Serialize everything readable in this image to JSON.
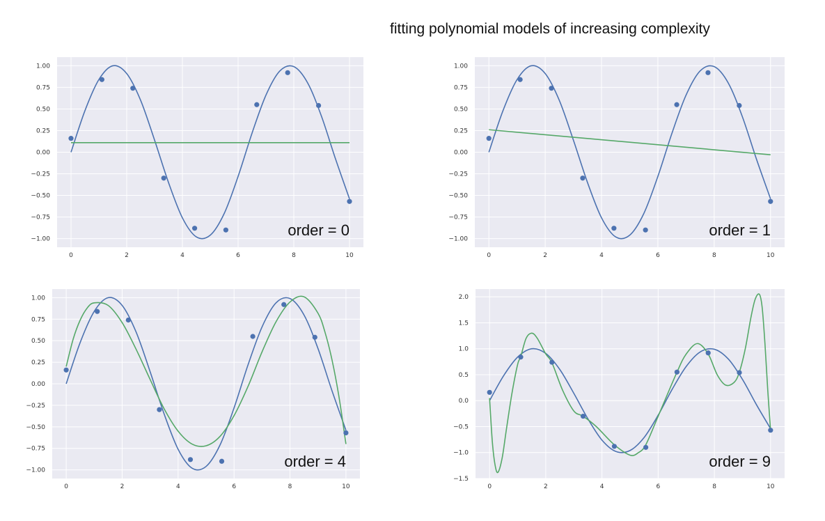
{
  "title": "fitting polynomial models of increasing complexity",
  "colors": {
    "background": "#EAEAF2",
    "grid": "#ffffff",
    "truth": "#4C72B0",
    "fit": "#55A868",
    "points": "#4C72B0"
  },
  "chart_data": [
    {
      "type": "line",
      "annotation": "order = 0",
      "xlim": [
        -0.5,
        10.5
      ],
      "ylim": [
        -1.1,
        1.1
      ],
      "xticks": [
        0,
        2,
        4,
        6,
        8,
        10
      ],
      "xtick_labels": [
        "0",
        "2",
        "4",
        "6",
        "8",
        "10"
      ],
      "yticks": [
        1,
        0.75,
        0.5,
        0.25,
        0,
        -0.25,
        -0.5,
        -0.75,
        -1
      ],
      "ytick_labels": [
        "1.00",
        "0.75",
        "0.50",
        "0.25",
        "0.00",
        "−0.25",
        "−0.50",
        "−0.75",
        "−1.00"
      ],
      "points": {
        "x": [
          0,
          1.11,
          2.22,
          3.33,
          4.44,
          5.56,
          6.67,
          7.78,
          8.89,
          10
        ],
        "y": [
          0.16,
          0.84,
          0.74,
          -0.3,
          -0.88,
          -0.9,
          0.55,
          0.92,
          0.54,
          -0.57
        ]
      },
      "truth": {
        "x": [
          0,
          0.5,
          1,
          1.5,
          2,
          2.5,
          3,
          3.5,
          4,
          4.5,
          5,
          5.5,
          6,
          6.5,
          7,
          7.5,
          8,
          8.5,
          9,
          9.5,
          10
        ],
        "y": [
          0,
          0.48,
          0.84,
          1.0,
          0.91,
          0.6,
          0.14,
          -0.35,
          -0.76,
          -0.98,
          -0.96,
          -0.71,
          -0.28,
          0.22,
          0.66,
          0.94,
          0.99,
          0.8,
          0.41,
          -0.08,
          -0.54
        ]
      },
      "fit": {
        "x": [
          0,
          10
        ],
        "y": [
          0.11,
          0.11
        ]
      }
    },
    {
      "type": "line",
      "annotation": "order = 1",
      "xlim": [
        -0.5,
        10.5
      ],
      "ylim": [
        -1.1,
        1.1
      ],
      "xticks": [
        0,
        2,
        4,
        6,
        8,
        10
      ],
      "xtick_labels": [
        "0",
        "2",
        "4",
        "6",
        "8",
        "10"
      ],
      "yticks": [
        1,
        0.75,
        0.5,
        0.25,
        0,
        -0.25,
        -0.5,
        -0.75,
        -1
      ],
      "ytick_labels": [
        "1.00",
        "0.75",
        "0.50",
        "0.25",
        "0.00",
        "−0.25",
        "−0.50",
        "−0.75",
        "−1.00"
      ],
      "points": {
        "x": [
          0,
          1.11,
          2.22,
          3.33,
          4.44,
          5.56,
          6.67,
          7.78,
          8.89,
          10
        ],
        "y": [
          0.16,
          0.84,
          0.74,
          -0.3,
          -0.88,
          -0.9,
          0.55,
          0.92,
          0.54,
          -0.57
        ]
      },
      "truth": {
        "x": [
          0,
          0.5,
          1,
          1.5,
          2,
          2.5,
          3,
          3.5,
          4,
          4.5,
          5,
          5.5,
          6,
          6.5,
          7,
          7.5,
          8,
          8.5,
          9,
          9.5,
          10
        ],
        "y": [
          0,
          0.48,
          0.84,
          1.0,
          0.91,
          0.6,
          0.14,
          -0.35,
          -0.76,
          -0.98,
          -0.96,
          -0.71,
          -0.28,
          0.22,
          0.66,
          0.94,
          0.99,
          0.8,
          0.41,
          -0.08,
          -0.54
        ]
      },
      "fit": {
        "x": [
          0,
          10
        ],
        "y": [
          0.26,
          -0.03
        ]
      }
    },
    {
      "type": "line",
      "annotation": "order = 4",
      "xlim": [
        -0.5,
        10.5
      ],
      "ylim": [
        -1.1,
        1.1
      ],
      "xticks": [
        0,
        2,
        4,
        6,
        8,
        10
      ],
      "xtick_labels": [
        "0",
        "2",
        "4",
        "6",
        "8",
        "10"
      ],
      "yticks": [
        1,
        0.75,
        0.5,
        0.25,
        0,
        -0.25,
        -0.5,
        -0.75,
        -1
      ],
      "ytick_labels": [
        "1.00",
        "0.75",
        "0.50",
        "0.25",
        "0.00",
        "−0.25",
        "−0.50",
        "−0.75",
        "−1.00"
      ],
      "points": {
        "x": [
          0,
          1.11,
          2.22,
          3.33,
          4.44,
          5.56,
          6.67,
          7.78,
          8.89,
          10
        ],
        "y": [
          0.16,
          0.84,
          0.74,
          -0.3,
          -0.88,
          -0.9,
          0.55,
          0.92,
          0.54,
          -0.57
        ]
      },
      "truth": {
        "x": [
          0,
          0.5,
          1,
          1.5,
          2,
          2.5,
          3,
          3.5,
          4,
          4.5,
          5,
          5.5,
          6,
          6.5,
          7,
          7.5,
          8,
          8.5,
          9,
          9.5,
          10
        ],
        "y": [
          0,
          0.48,
          0.84,
          1.0,
          0.91,
          0.6,
          0.14,
          -0.35,
          -0.76,
          -0.98,
          -0.96,
          -0.71,
          -0.28,
          0.22,
          0.66,
          0.94,
          0.99,
          0.8,
          0.41,
          -0.08,
          -0.54
        ]
      },
      "fit": {
        "x": [
          0,
          0.25,
          0.5,
          0.75,
          1,
          1.5,
          2,
          2.5,
          3,
          3.5,
          4,
          4.5,
          5,
          5.5,
          6,
          6.5,
          7,
          7.5,
          8,
          8.5,
          9,
          9.25,
          9.5,
          9.75,
          10
        ],
        "y": [
          0.2,
          0.52,
          0.74,
          0.88,
          0.94,
          0.91,
          0.71,
          0.4,
          0.05,
          -0.29,
          -0.55,
          -0.7,
          -0.72,
          -0.61,
          -0.37,
          -0.03,
          0.37,
          0.72,
          0.95,
          1.01,
          0.82,
          0.6,
          0.28,
          -0.15,
          -0.7
        ]
      }
    },
    {
      "type": "line",
      "annotation": "order = 9",
      "xlim": [
        -0.5,
        10.5
      ],
      "ylim": [
        -1.5,
        2.15
      ],
      "xticks": [
        0,
        2,
        4,
        6,
        8,
        10
      ],
      "xtick_labels": [
        "0",
        "2",
        "4",
        "6",
        "8",
        "10"
      ],
      "yticks": [
        2,
        1.5,
        1,
        0.5,
        0,
        -0.5,
        -1,
        -1.5
      ],
      "ytick_labels": [
        "2.0",
        "1.5",
        "1.0",
        "0.5",
        "0.0",
        "−0.5",
        "−1.0",
        "−1.5"
      ],
      "points": {
        "x": [
          0,
          1.11,
          2.22,
          3.33,
          4.44,
          5.56,
          6.67,
          7.78,
          8.89,
          10
        ],
        "y": [
          0.16,
          0.84,
          0.74,
          -0.3,
          -0.88,
          -0.9,
          0.55,
          0.92,
          0.54,
          -0.57
        ]
      },
      "truth": {
        "x": [
          0,
          0.5,
          1,
          1.5,
          2,
          2.5,
          3,
          3.5,
          4,
          4.5,
          5,
          5.5,
          6,
          6.5,
          7,
          7.5,
          8,
          8.5,
          9,
          9.5,
          10
        ],
        "y": [
          0,
          0.48,
          0.84,
          1.0,
          0.91,
          0.6,
          0.14,
          -0.35,
          -0.76,
          -0.98,
          -0.96,
          -0.71,
          -0.28,
          0.22,
          0.66,
          0.94,
          0.99,
          0.8,
          0.41,
          -0.08,
          -0.54
        ]
      },
      "fit": {
        "x": [
          0,
          0.1,
          0.2,
          0.3,
          0.45,
          0.6,
          0.8,
          1.0,
          1.11,
          1.3,
          1.5,
          1.7,
          2.0,
          2.22,
          2.6,
          3.0,
          3.33,
          3.8,
          4.44,
          5.0,
          5.3,
          5.56,
          6.0,
          6.67,
          7.0,
          7.4,
          7.78,
          8.1,
          8.4,
          8.7,
          8.89,
          9.1,
          9.3,
          9.45,
          9.6,
          9.7,
          9.8,
          9.9,
          10
        ],
        "y": [
          0.05,
          -0.8,
          -1.25,
          -1.38,
          -1.1,
          -0.55,
          0.15,
          0.7,
          0.85,
          1.2,
          1.3,
          1.2,
          0.9,
          0.73,
          0.2,
          -0.2,
          -0.3,
          -0.5,
          -0.85,
          -1.05,
          -1.0,
          -0.85,
          -0.3,
          0.55,
          0.9,
          1.1,
          0.9,
          0.5,
          0.3,
          0.35,
          0.55,
          1.0,
          1.6,
          1.95,
          2.05,
          1.8,
          1.1,
          0.2,
          -0.57
        ]
      }
    }
  ]
}
